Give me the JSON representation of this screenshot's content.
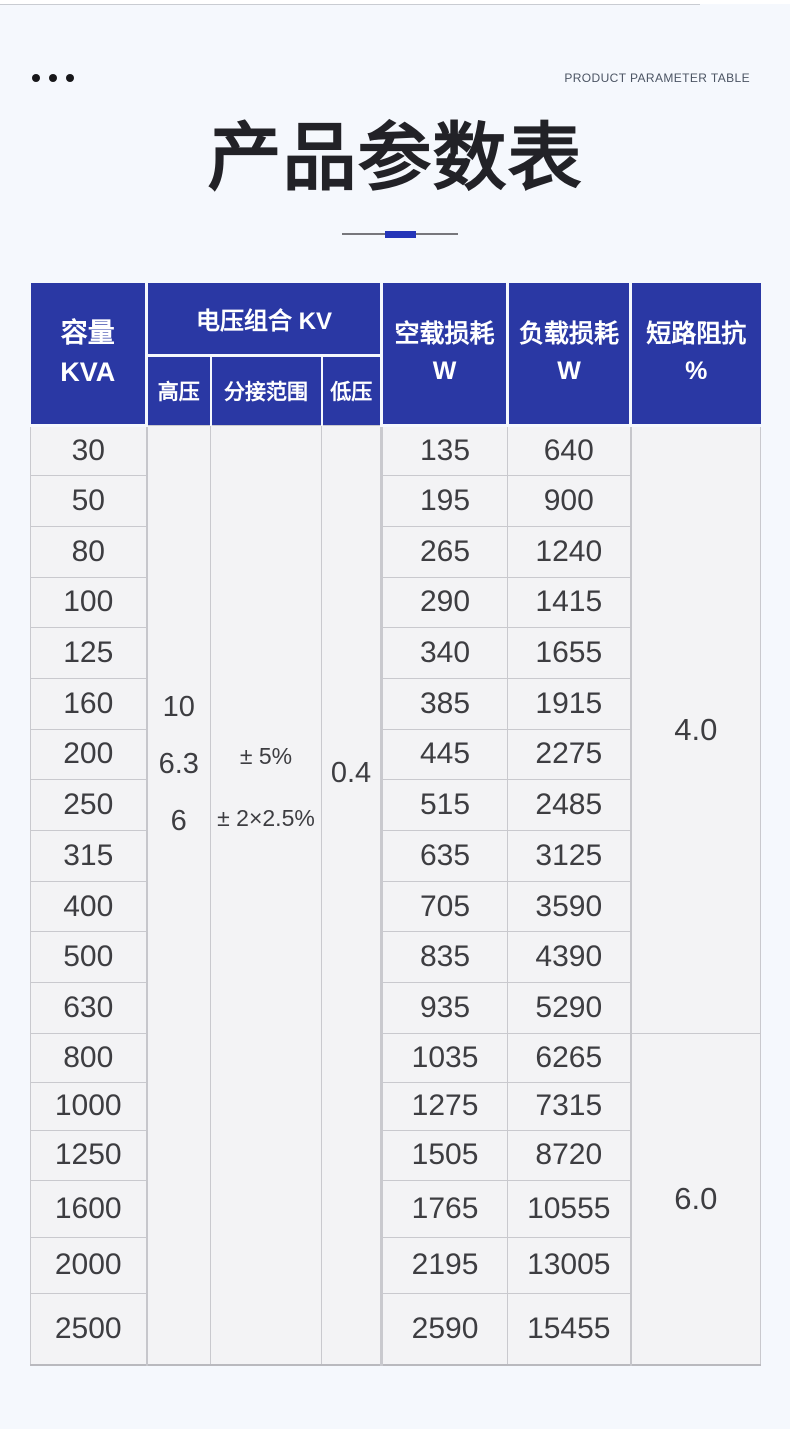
{
  "page": {
    "eyebrow": "PRODUCT PARAMETER TABLE",
    "title": "产品参数表"
  },
  "colors": {
    "header_bg": "#2a38a4",
    "accent_blue": "#2435b8",
    "page_bg": "#f5f8fd",
    "cell_bg": "#f3f3f5",
    "cell_border": "#c9c9ce",
    "body_text": "#3d3d41"
  },
  "table": {
    "headers": {
      "capacity_line1": "容量",
      "capacity_line2": "KVA",
      "voltage_group": "电压组合 KV",
      "sub_hv": "高压",
      "sub_tap": "分接范围",
      "sub_lv": "低压",
      "no_load_line1": "空载损耗",
      "no_load_line2": "W",
      "load_line1": "负载损耗",
      "load_line2": "W",
      "impedance_line1": "短路阻抗",
      "impedance_line2": "%"
    },
    "merged": {
      "hv_values": [
        "10",
        "6.3",
        "6"
      ],
      "tap_values": [
        "± 5%",
        "± 2×2.5%"
      ],
      "lv_value": "0.4"
    },
    "groups": [
      {
        "impedance": "4.0",
        "rows": [
          {
            "capacity": "30",
            "no_load": "135",
            "load": "640"
          },
          {
            "capacity": "50",
            "no_load": "195",
            "load": "900"
          },
          {
            "capacity": "80",
            "no_load": "265",
            "load": "1240"
          },
          {
            "capacity": "100",
            "no_load": "290",
            "load": "1415"
          },
          {
            "capacity": "125",
            "no_load": "340",
            "load": "1655"
          },
          {
            "capacity": "160",
            "no_load": "385",
            "load": "1915"
          },
          {
            "capacity": "200",
            "no_load": "445",
            "load": "2275"
          },
          {
            "capacity": "250",
            "no_load": "515",
            "load": "2485"
          },
          {
            "capacity": "315",
            "no_load": "635",
            "load": "3125"
          },
          {
            "capacity": "400",
            "no_load": "705",
            "load": "3590"
          },
          {
            "capacity": "500",
            "no_load": "835",
            "load": "4390"
          },
          {
            "capacity": "630",
            "no_load": "935",
            "load": "5290"
          }
        ]
      },
      {
        "impedance": "6.0",
        "rows": [
          {
            "capacity": "800",
            "no_load": "1035",
            "load": "6265"
          },
          {
            "capacity": "1000",
            "no_load": "1275",
            "load": "7315"
          },
          {
            "capacity": "1250",
            "no_load": "1505",
            "load": "8720"
          },
          {
            "capacity": "1600",
            "no_load": "1765",
            "load": "10555"
          },
          {
            "capacity": "2000",
            "no_load": "2195",
            "load": "13005"
          },
          {
            "capacity": "2500",
            "no_load": "2590",
            "load": "15455"
          }
        ]
      }
    ]
  }
}
